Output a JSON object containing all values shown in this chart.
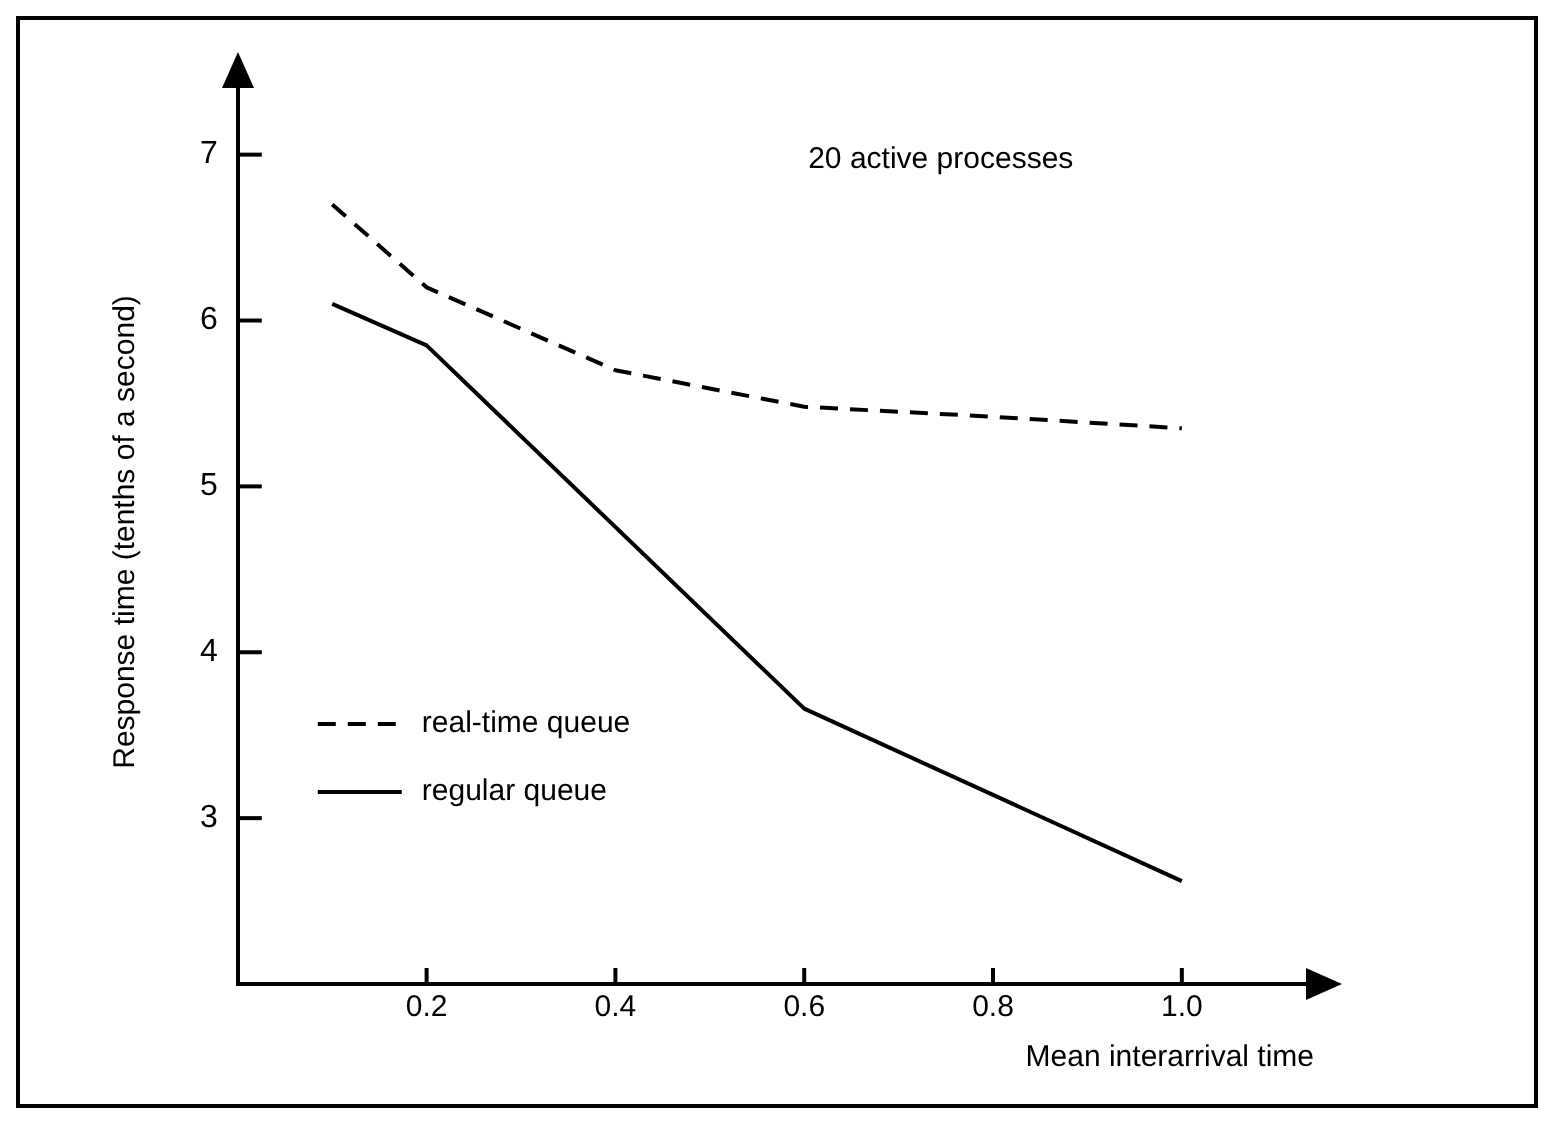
{
  "chart_data": {
    "type": "line",
    "xlabel": "Mean interarrival time",
    "ylabel": "Response time (tenths of a second)",
    "annotations": [
      "20 active processes"
    ],
    "xlim": [
      0,
      1.14
    ],
    "xticks": [
      0.2,
      0.4,
      {
        "value": 0.6,
        "label": "0.6"
      },
      0.8,
      {
        "value": 1.0,
        "label": "1.0"
      }
    ],
    "ylim": [
      2,
      7.45
    ],
    "yticks": [
      3,
      4,
      5,
      6,
      7
    ],
    "legend": "bottom left",
    "grid": false,
    "marker": "none",
    "series": [
      {
        "name": "real-time queue",
        "color": "#000000",
        "line_style": "dashed",
        "x": [
          0.1,
          0.2,
          0.4,
          0.6,
          0.8,
          1.0
        ],
        "values": [
          6.7,
          6.2,
          5.7,
          5.48,
          5.42,
          5.35
        ]
      },
      {
        "name": "regular queue",
        "color": "#000000",
        "line_style": "solid",
        "x": [
          0.1,
          0.2,
          0.6,
          0.8,
          1.0
        ],
        "values": [
          6.1,
          5.85,
          3.66,
          3.14,
          2.62
        ]
      }
    ]
  }
}
